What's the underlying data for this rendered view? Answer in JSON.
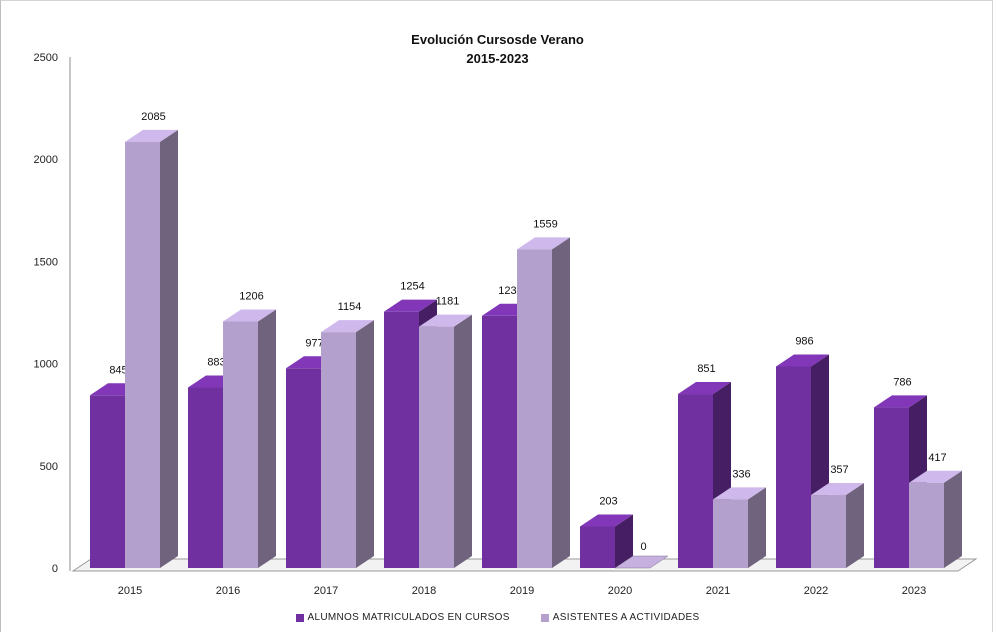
{
  "chart_data": {
    "type": "bar",
    "title": "Evolución Cursosde Verano",
    "subtitle": "2015-2023",
    "categories": [
      "2015",
      "2016",
      "2017",
      "2018",
      "2019",
      "2020",
      "2021",
      "2022",
      "2023"
    ],
    "series": [
      {
        "name": "ALUMNOS MATRICULADOS EN CURSOS",
        "values": [
          845,
          883,
          977,
          1254,
          1234,
          203,
          851,
          986,
          786
        ],
        "color": "#7030a0"
      },
      {
        "name": "ASISTENTES A ACTIVIDADES",
        "values": [
          2085,
          1206,
          1154,
          1181,
          1559,
          0,
          336,
          357,
          417
        ],
        "color": "#b4a0cc"
      }
    ],
    "ylim": [
      0,
      2500
    ],
    "yticks": [
      "0",
      "500",
      "1000",
      "1500",
      "2000",
      "2500"
    ],
    "grid": false,
    "legend": "bottom"
  }
}
